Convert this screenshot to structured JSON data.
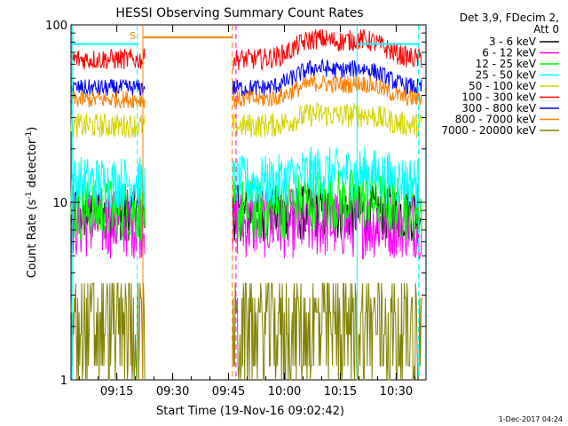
{
  "chart_data": {
    "type": "line",
    "title": "HESSI Observing Summary Count Rates",
    "xlabel": "Start Time (19-Nov-16 09:02:42)",
    "ylabel": "Count Rate (s",
    "ylabel_sup": "-1",
    "ylabel_tail": " detector",
    "ylabel_close": ")",
    "yscale": "log",
    "ylim": [
      1,
      100
    ],
    "xlim": [
      "09:02:42",
      "10:38:00"
    ],
    "x_ticks": [
      "09:15",
      "09:30",
      "09:45",
      "10:00",
      "10:15",
      "10:30"
    ],
    "y_ticks": [
      "1",
      "10",
      "100"
    ],
    "legend": {
      "position": "top-right",
      "header_line1": "Det 3,9, FDecim 2,",
      "header_line2": "Att 0"
    },
    "annotations": {
      "marker_s": "S",
      "footer_date": "1-Dec-2017 04:24"
    },
    "series": [
      {
        "name": "3 - 6 keV",
        "color": "#000000",
        "level": 8.7,
        "noise": 0.16,
        "hump": 0.0
      },
      {
        "name": "6 - 12 keV",
        "color": "#ff00ff",
        "level": 7.6,
        "noise": 0.2,
        "hump": 0.0
      },
      {
        "name": "12 - 25 keV",
        "color": "#00ff00",
        "level": 9.0,
        "noise": 0.18,
        "hump": 0.15
      },
      {
        "name": "25 - 50 keV",
        "color": "#00ffff",
        "level": 13.0,
        "noise": 0.15,
        "hump": 0.12
      },
      {
        "name": "50 - 100 keV",
        "color": "#d4d400",
        "level": 27.0,
        "noise": 0.07,
        "hump": 0.15
      },
      {
        "name": "100 - 300 keV",
        "color": "#ff0000",
        "level": 64.0,
        "noise": 0.06,
        "hump": 0.28
      },
      {
        "name": "300 - 800 keV",
        "color": "#0000ff",
        "level": 44.0,
        "noise": 0.05,
        "hump": 0.28
      },
      {
        "name": "800 - 7000 keV",
        "color": "#ff8000",
        "level": 38.0,
        "noise": 0.05,
        "hump": 0.22
      },
      {
        "name": "7000 - 20000 keV",
        "color": "#808000",
        "level": 2.1,
        "noise": 0.35,
        "hump": 0.0
      }
    ],
    "data_gaps": [
      [
        "09:22:30",
        "09:46:00"
      ]
    ],
    "attenuator_level": 85,
    "vertical_markers": [
      {
        "time": "09:03:00",
        "color": "#00ffff",
        "style": "solid"
      },
      {
        "time": "09:20:30",
        "color": "#00ffff",
        "style": "dashed"
      },
      {
        "time": "09:22:00",
        "color": "#ff8000",
        "style": "solid"
      },
      {
        "time": "09:46:00",
        "color": "#ff8000",
        "style": "dashed"
      },
      {
        "time": "09:47:00",
        "color": "#ff00ff",
        "style": "dashed"
      },
      {
        "time": "10:19:30",
        "color": "#00ffff",
        "style": "solid"
      },
      {
        "time": "10:36:00",
        "color": "#00ffff",
        "style": "dashed"
      }
    ]
  }
}
